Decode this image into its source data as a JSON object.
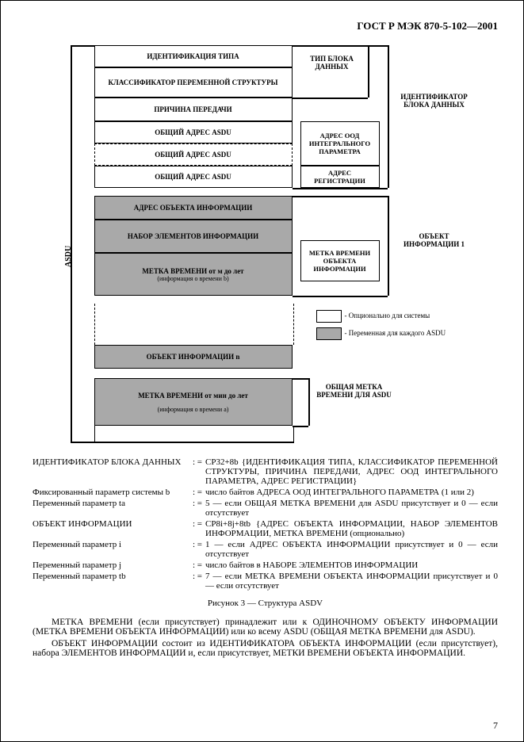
{
  "header": "ГОСТ Р МЭК 870-5-102—2001",
  "asduLabel": "ASDU",
  "blocks": {
    "b1": "ИДЕНТИФИКАЦИЯ ТИПА",
    "b2": "КЛАССИФИКАТОР ПЕРЕМЕННОЙ СТРУКТУРЫ",
    "b3": "ПРИЧИНА ПЕРЕДАЧИ",
    "b4": "ОБЩИЙ АДРЕС ASDU",
    "b5": "ОБЩИЙ АДРЕС ASDU",
    "b6": "ОБЩИЙ АДРЕС ASDU",
    "b7": "АДРЕС ОБЪЕКТА ИНФОРМАЦИИ",
    "b8": "НАБОР ЭЛЕМЕНТОВ ИНФОРМАЦИИ",
    "b9": "МЕТКА ВРЕМЕНИ от м до лет",
    "b9s": "(информация о времени b)",
    "b10": "ОБЪЕКТ ИНФОРМАЦИИ n",
    "b11": "МЕТКА ВРЕМЕНИ от мин до лет",
    "b11s": "(информация о времени a)"
  },
  "sideLabels": {
    "s1": "ТИП БЛОКА ДАННЫХ",
    "s2": "ИДЕНТИФИКАТОР БЛОКА ДАННЫХ",
    "s3": "АДРЕС ООД ИНТЕГРАЛЬНОГО ПАРАМЕТРА",
    "s4": "АДРЕС РЕГИСТРАЦИИ",
    "s5": "МЕТКА ВРЕМЕНИ ОБЪЕКТА ИНФОРМАЦИИ",
    "s6": "ОБЪЕКТ ИНФОРМАЦИИ 1",
    "s7": "ОБЩАЯ МЕТКА ВРЕМЕНИ ДЛЯ ASDU"
  },
  "legend": {
    "l1": "- Опционально для системы",
    "l2": "- Переменная для каждого ASDU"
  },
  "defs": [
    {
      "t": "ИДЕНТИФИКАТОР БЛОКА ДАННЫХ",
      "d": "CP32+8b {ИДЕНТИФИКАЦИЯ ТИПА, КЛАССИФИКАТОР ПЕРЕМЕННОЙ СТРУКТУРЫ, ПРИЧИНА ПЕРЕДАЧИ, АДРЕС ООД ИНТЕГРАЛЬНОГО ПАРАМЕТРА, АДРЕС РЕГИСТРАЦИИ}"
    },
    {
      "t": "Фиксированный параметр системы b",
      "d": "число байтов АДРЕСА ООД ИНТЕГРАЛЬНОГО ПАРАМЕТРА (1 или 2)"
    },
    {
      "t": "Переменный параметр ta",
      "d": "5 — если ОБЩАЯ МЕТКА ВРЕМЕНИ для ASDU присутствует и 0 — если отсутствует"
    },
    {
      "t": "ОБЪЕКТ ИНФОРМАЦИИ",
      "d": "CP8i+8j+8tb {АДРЕС ОБЪЕКТА ИНФОРМАЦИИ, НАБОР ЭЛЕМЕНТОВ ИНФОРМАЦИИ, МЕТКА ВРЕМЕНИ (опционально)"
    },
    {
      "t": "Переменный параметр i",
      "d": "1 — если АДРЕС ОБЪЕКТА ИНФОРМАЦИИ присутствует и 0 — если отсутствует"
    },
    {
      "t": "Переменный параметр j",
      "d": "число байтов в НАБОРЕ ЭЛЕМЕНТОВ ИНФОРМАЦИИ"
    },
    {
      "t": "Переменный параметр tb",
      "d": "7 — если МЕТКА ВРЕМЕНИ ОБЪЕКТА ИНФОРМАЦИИ присутствует и 0 — если отсутствует"
    }
  ],
  "caption": "Рисунок 3 — Структура ASDV",
  "paras": [
    "МЕТКА ВРЕМЕНИ (если присутствует) принадлежит или к ОДИНОЧНОМУ ОБЪЕКТУ ИНФОРМАЦИИ (МЕТКА ВРЕМЕНИ ОБЪЕКТА ИНФОРМАЦИИ) или ко всему ASDU (ОБЩАЯ МЕТКА ВРЕМЕНИ для ASDU).",
    "ОБЪЕКТ ИНФОРМАЦИИ состоит из ИДЕНТИФИКАТОРА ОБЪЕКТА ИНФОРМАЦИИ (если присутствует), набора ЭЛЕМЕНТОВ ИНФОРМАЦИИ и, если присутствует, МЕТКИ ВРЕМЕНИ ОБЪЕКТА ИНФОРМАЦИИ."
  ],
  "pageNo": "7",
  "colors": {
    "gray": "#a9a9a9",
    "bg": "#ffffff"
  }
}
